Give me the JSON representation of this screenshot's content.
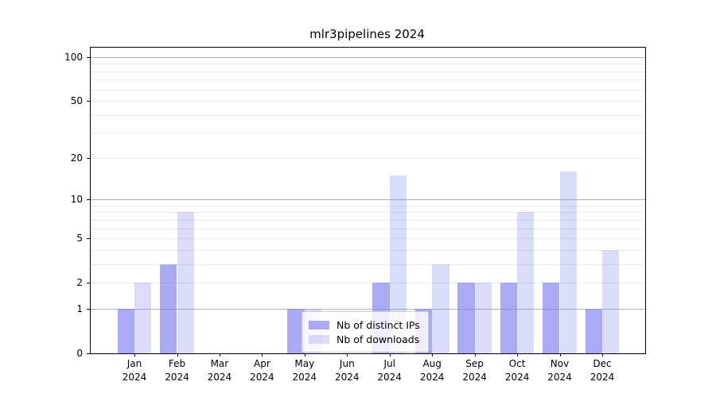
{
  "figure": {
    "title": "mlr3pipelines 2024"
  },
  "colors": {
    "bar_base": "#7c7cee",
    "ips_alpha": 0.65,
    "downloads_alpha": 0.28,
    "grid_major": "#b0b0b0",
    "grid_minor": "#e9e9e9",
    "spine": "#000000",
    "text": "#000000",
    "background": "#ffffff",
    "legend_border": "#cccccc"
  },
  "chart_data": {
    "type": "bar",
    "title": "mlr3pipelines 2024",
    "categories": [
      "Jan",
      "Feb",
      "Mar",
      "Apr",
      "May",
      "Jun",
      "Jul",
      "Aug",
      "Sep",
      "Oct",
      "Nov",
      "Dec"
    ],
    "category_year": "2024",
    "series": [
      {
        "name": "Nb of distinct IPs",
        "values": [
          1,
          3,
          0,
          0,
          1,
          0,
          2,
          1,
          2,
          2,
          2,
          1
        ]
      },
      {
        "name": "Nb of downloads",
        "values": [
          2,
          8,
          0,
          0,
          1,
          0,
          15,
          3,
          2,
          8,
          16,
          4
        ]
      }
    ],
    "xlabel": "",
    "ylabel": "",
    "yscale": "log1p",
    "ylim": [
      0,
      116
    ],
    "yticks": [
      0,
      1,
      2,
      5,
      10,
      20,
      50,
      100
    ],
    "grid": {
      "major": [
        1,
        10,
        100
      ],
      "minor": [
        2,
        3,
        4,
        5,
        6,
        7,
        8,
        9,
        20,
        30,
        40,
        50,
        60,
        70,
        80,
        90
      ]
    },
    "grid_on": true,
    "legend_position": "lower center"
  }
}
